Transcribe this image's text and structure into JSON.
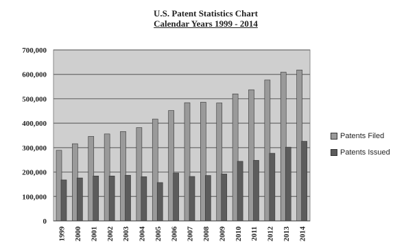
{
  "chart_data": {
    "type": "bar",
    "title": "U.S. Patent Statistics Chart",
    "subtitle": "Calendar Years 1999 - 2014",
    "categories": [
      "1999",
      "2000",
      "2001",
      "2002",
      "2003",
      "2004",
      "2005",
      "2006",
      "2007",
      "2008",
      "2009",
      "2010",
      "2011",
      "2012",
      "2013",
      "2014"
    ],
    "series": [
      {
        "name": "Patents Filed",
        "color": "#9a9a9a",
        "values": [
          289000,
          316000,
          346000,
          356000,
          366000,
          382000,
          417000,
          452000,
          484000,
          486000,
          483000,
          520000,
          537000,
          577000,
          609000,
          618000
        ]
      },
      {
        "name": "Patents Issued",
        "color": "#5c5c5c",
        "values": [
          168000,
          176000,
          184000,
          184000,
          187000,
          181000,
          157000,
          196000,
          182000,
          186000,
          192000,
          244000,
          248000,
          277000,
          302000,
          326000
        ]
      }
    ],
    "y_ticks": [
      "0",
      "100,000",
      "200,000",
      "300,000",
      "400,000",
      "500,000",
      "600,000",
      "700,000"
    ],
    "ylim": [
      0,
      700000
    ],
    "grid": true,
    "legend_position": "right",
    "plot_background": "#cfcfcf"
  }
}
